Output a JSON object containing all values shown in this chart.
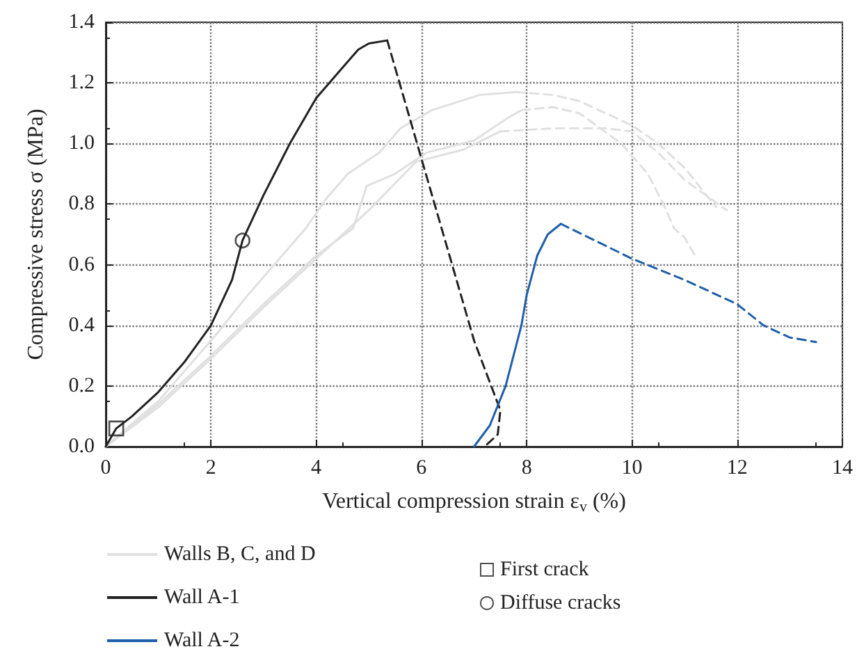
{
  "chart_data": {
    "type": "line",
    "xlabel": "Vertical compression strain ε$_{v}$ (%)",
    "ylabel": "Compressive stress σ (MPa)",
    "xlim": [
      0,
      14
    ],
    "xticks": [
      0,
      2,
      4,
      6,
      8,
      10,
      12,
      14
    ],
    "ylim": [
      0,
      1.4
    ],
    "yticks": [
      {
        "value": 0,
        "label": "0.0"
      },
      {
        "value": 0.2,
        "label": "0.2"
      },
      {
        "value": 0.4,
        "label": "0.4"
      },
      {
        "value": 0.6,
        "label": "0.6"
      },
      {
        "value": 0.8,
        "label": "0.8"
      },
      {
        "value": 1,
        "label": "1.0"
      },
      {
        "value": 1.2,
        "label": "1.2"
      },
      {
        "value": 1.4,
        "label": "1.4"
      }
    ],
    "grid": true,
    "legend": "bottom",
    "marker": "none",
    "series": [
      {
        "name": "Walls B, C, and D",
        "color": "#e0e0e0",
        "line_style": "solid",
        "x": [
          0,
          1,
          2.1,
          2.7,
          3.8,
          4.2,
          4.6,
          5.2,
          5.6,
          6.2,
          7.1,
          7.8
        ],
        "values": [
          0,
          0.15,
          0.37,
          0.5,
          0.72,
          0.82,
          0.9,
          0.97,
          1.05,
          1.11,
          1.16,
          1.17
        ]
      },
      {
        "color": "#e0e0e0",
        "line_style": "dashed",
        "x": [
          7.8,
          8.5,
          9,
          10,
          10.5,
          11,
          11.6
        ],
        "values": [
          1.17,
          1.16,
          1.14,
          1.06,
          1.0,
          0.92,
          0.79
        ]
      },
      {
        "color": "#e0e0e0",
        "line_style": "solid",
        "x": [
          0,
          1,
          2,
          3,
          4,
          4.7,
          4.96,
          5.5,
          6.1,
          7,
          7.6,
          7.9
        ],
        "values": [
          0,
          0.14,
          0.3,
          0.47,
          0.63,
          0.72,
          0.86,
          0.9,
          0.97,
          1.01,
          1.08,
          1.11
        ]
      },
      {
        "color": "#e0e0e0",
        "line_style": "dashed",
        "x": [
          7.9,
          8.5,
          9,
          9.8,
          10.3,
          10.6,
          10.8,
          11,
          11.2
        ],
        "values": [
          1.11,
          1.12,
          1.1,
          1.0,
          0.9,
          0.8,
          0.72,
          0.69,
          0.63
        ]
      },
      {
        "color": "#e0e0e0",
        "line_style": "solid",
        "x": [
          0,
          1,
          2,
          3,
          4,
          4.5,
          5,
          5.9,
          6.8,
          7.5
        ],
        "values": [
          0,
          0.13,
          0.29,
          0.46,
          0.62,
          0.7,
          0.78,
          0.94,
          0.98,
          1.04
        ]
      },
      {
        "color": "#e0e0e0",
        "line_style": "dashed",
        "x": [
          7.5,
          8.5,
          9.5,
          10,
          10.5,
          11,
          11.8
        ],
        "values": [
          1.04,
          1.05,
          1.05,
          1.04,
          0.97,
          0.88,
          0.78
        ]
      },
      {
        "name": "Wall A-1",
        "color": "#222222",
        "line_style": "solid",
        "x": [
          0,
          0.2,
          0.5,
          1,
          1.5,
          2,
          2.4,
          2.6,
          3,
          3.5,
          4,
          4.5,
          4.8,
          5,
          5.35
        ],
        "values": [
          0,
          0.06,
          0.1,
          0.18,
          0.28,
          0.4,
          0.55,
          0.68,
          0.83,
          1.0,
          1.15,
          1.25,
          1.31,
          1.33,
          1.34
        ]
      },
      {
        "color": "#222222",
        "line_style": "dashed",
        "x": [
          5.35,
          6,
          7,
          7.5,
          7.45,
          7.2
        ],
        "values": [
          1.34,
          0.95,
          0.35,
          0.12,
          0.04,
          0.0
        ]
      },
      {
        "name": "Wall A-2",
        "color": "#1f5fa8",
        "line_style": "solid",
        "x": [
          7.0,
          7.3,
          7.6,
          7.9,
          8.0,
          8.2,
          8.4,
          8.65
        ],
        "values": [
          0.0,
          0.07,
          0.2,
          0.4,
          0.5,
          0.63,
          0.7,
          0.735
        ]
      },
      {
        "color": "#1f5fa8",
        "line_style": "dashed",
        "x": [
          8.65,
          10,
          11,
          12,
          12.5,
          13,
          13.5
        ],
        "values": [
          0.735,
          0.62,
          0.55,
          0.47,
          0.4,
          0.36,
          0.345
        ]
      },
      {
        "name": "First crack",
        "type": "scatter",
        "marker": "square",
        "color": "#222222",
        "x": [
          0.2
        ],
        "values": [
          0.06
        ]
      },
      {
        "name": "Diffuse cracks",
        "type": "scatter",
        "marker": "circle",
        "color": "#222222",
        "x": [
          2.6
        ],
        "values": [
          0.68
        ]
      }
    ]
  }
}
